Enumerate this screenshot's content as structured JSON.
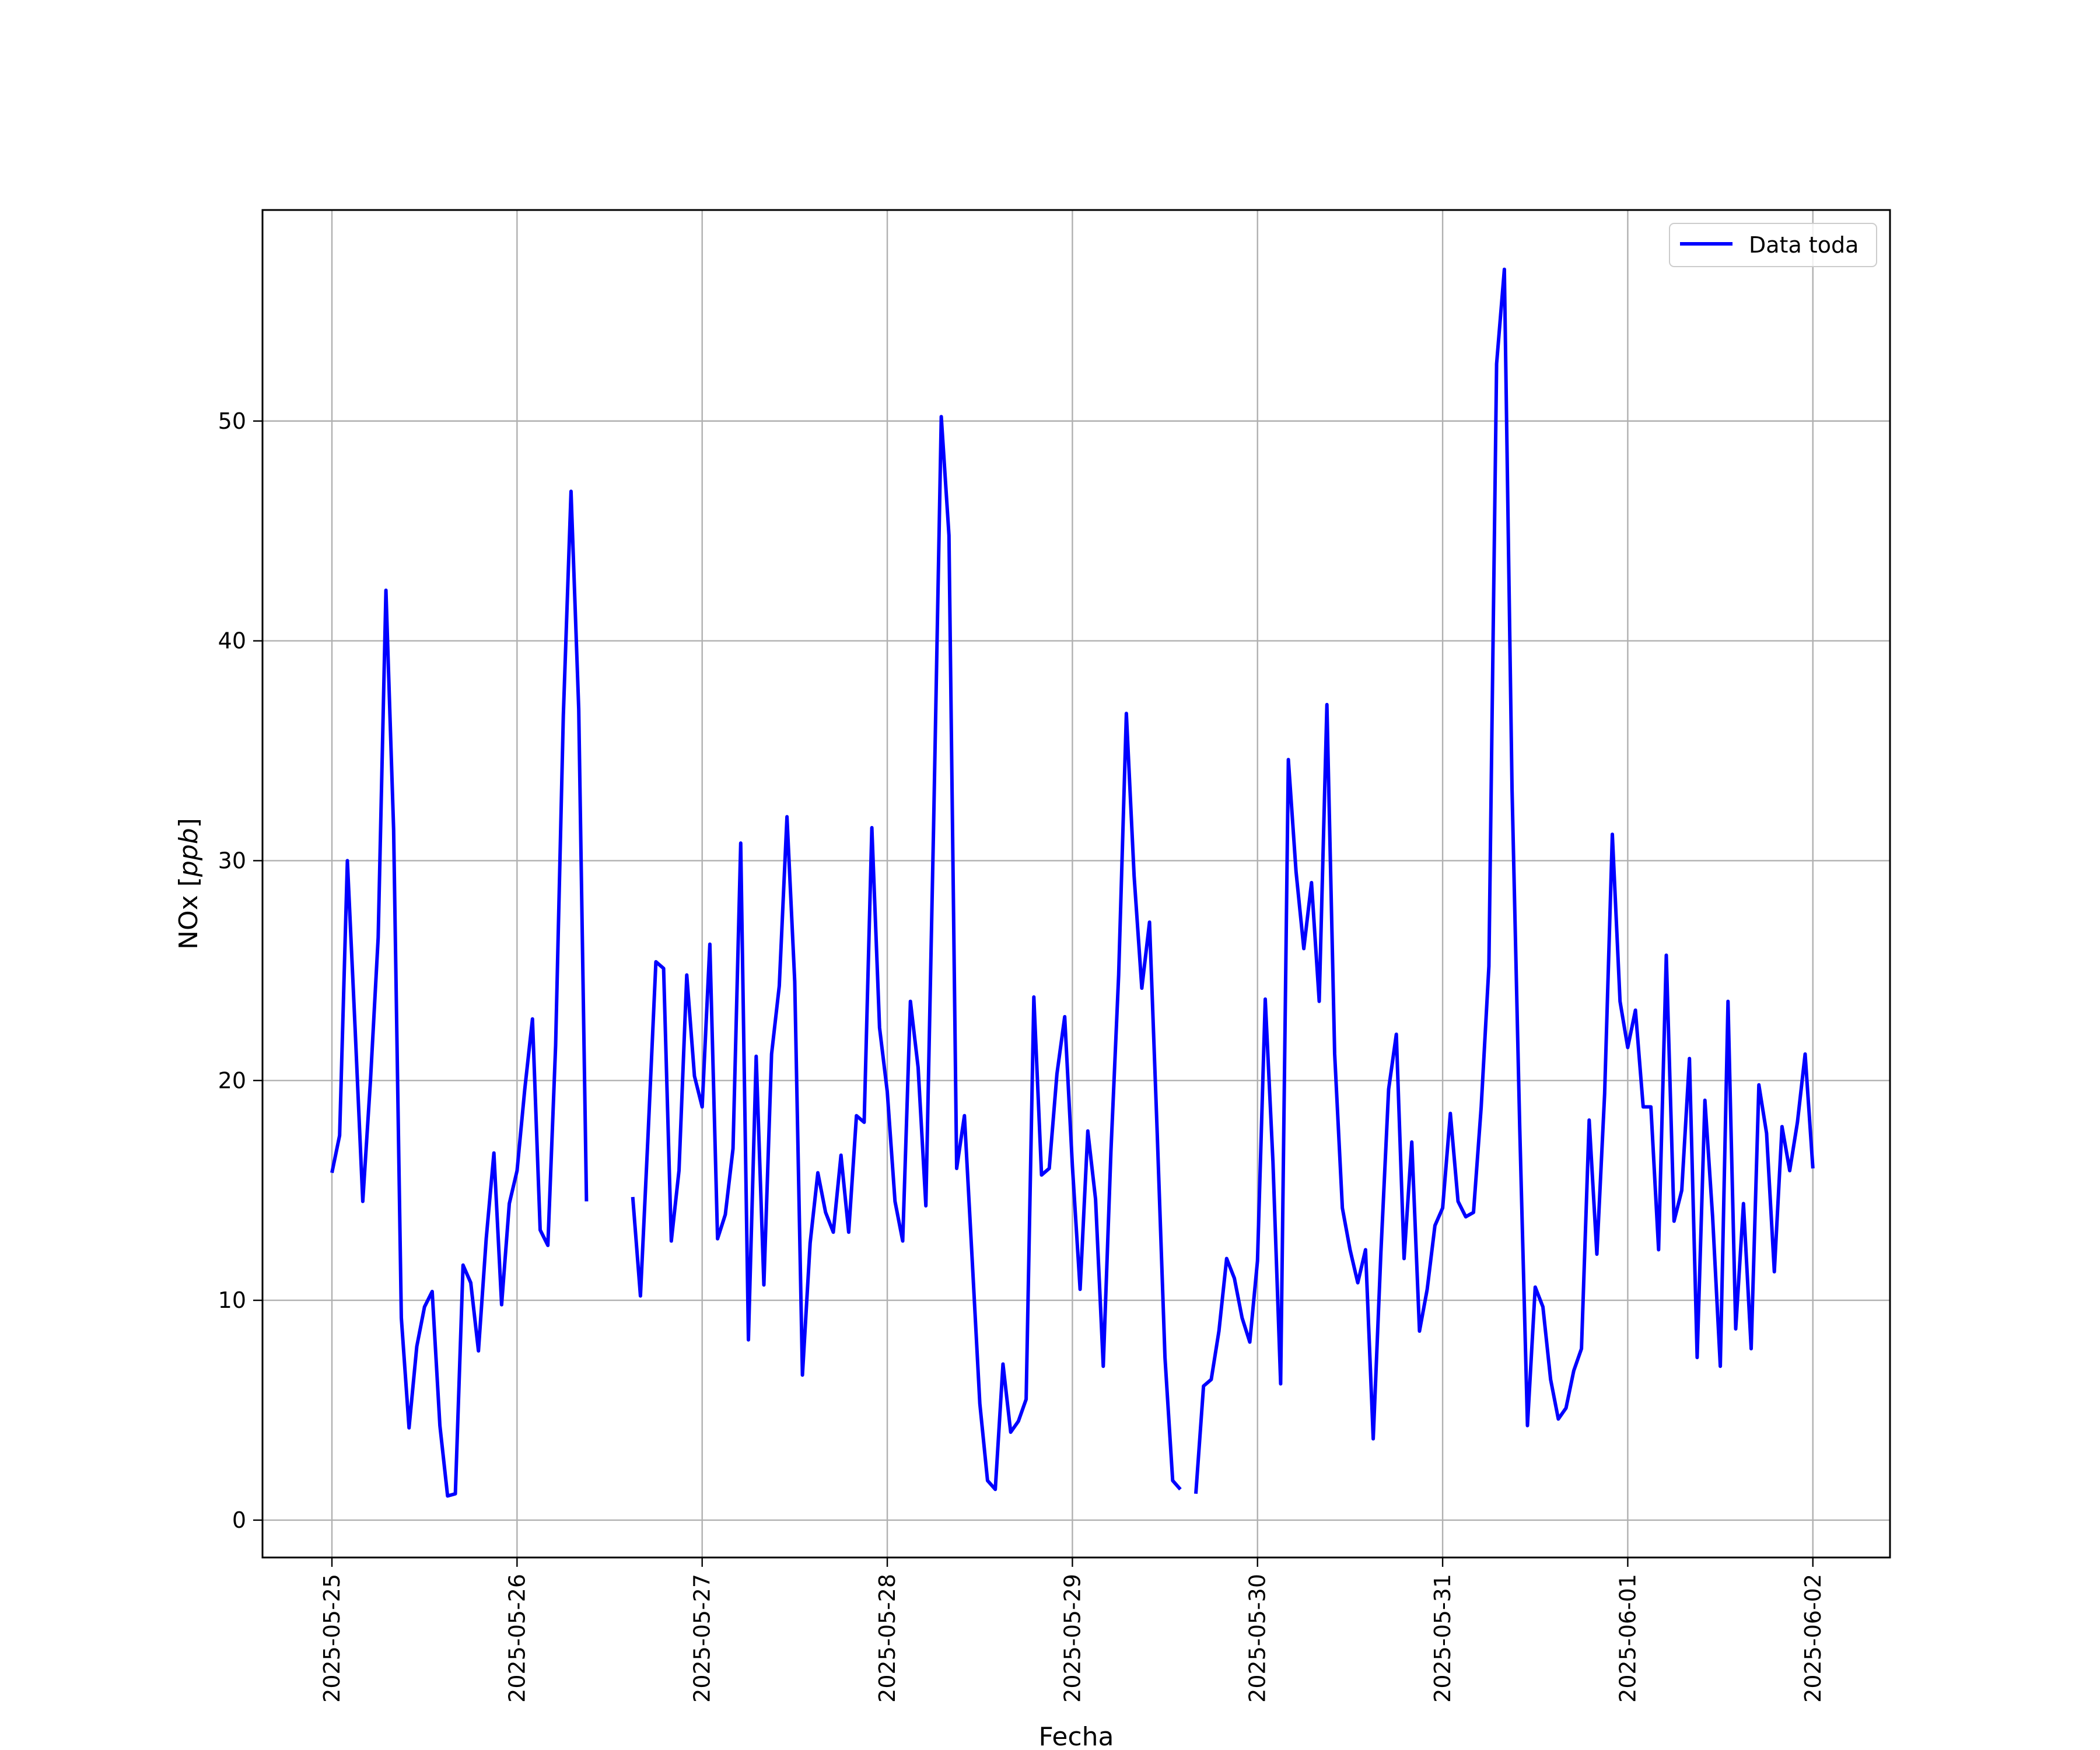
{
  "chart_data": {
    "type": "line",
    "title": "",
    "xlabel": "Fecha",
    "ylabel_main": "NOx [",
    "ylabel_unit": "ppb",
    "ylabel_close": "]",
    "xlim": [
      "2025-05-24T15:00",
      "2025-06-02T10:00"
    ],
    "ylim": [
      -1.7,
      59.6
    ],
    "grid": true,
    "legend_position": "top-right",
    "x_ticks": [
      "2025-05-25",
      "2025-05-26",
      "2025-05-27",
      "2025-05-28",
      "2025-05-29",
      "2025-05-30",
      "2025-05-31",
      "2025-06-01",
      "2025-06-02"
    ],
    "y_ticks": [
      0,
      10,
      20,
      30,
      40,
      50
    ],
    "series": [
      {
        "name": "Data toda",
        "color": "#0000ff",
        "points": [
          [
            "2025-05-25T00:00",
            15.8
          ],
          [
            "2025-05-25T01:00",
            17.5
          ],
          [
            "2025-05-25T02:00",
            30.0
          ],
          [
            "2025-05-25T03:00",
            22.4
          ],
          [
            "2025-05-25T04:00",
            14.5
          ],
          [
            "2025-05-25T05:00",
            20.0
          ],
          [
            "2025-05-25T06:00",
            26.5
          ],
          [
            "2025-05-25T07:00",
            42.3
          ],
          [
            "2025-05-25T08:00",
            31.4
          ],
          [
            "2025-05-25T09:00",
            9.2
          ],
          [
            "2025-05-25T10:00",
            4.2
          ],
          [
            "2025-05-25T11:00",
            7.9
          ],
          [
            "2025-05-25T12:00",
            9.7
          ],
          [
            "2025-05-25T13:00",
            10.4
          ],
          [
            "2025-05-25T14:00",
            4.3
          ],
          [
            "2025-05-25T15:00",
            1.1
          ],
          [
            "2025-05-25T16:00",
            1.2
          ],
          [
            "2025-05-25T17:00",
            11.6
          ],
          [
            "2025-05-25T18:00",
            10.8
          ],
          [
            "2025-05-25T19:00",
            7.7
          ],
          [
            "2025-05-25T20:00",
            12.8
          ],
          [
            "2025-05-25T21:00",
            16.7
          ],
          [
            "2025-05-25T22:00",
            9.8
          ],
          [
            "2025-05-25T23:00",
            14.4
          ],
          [
            "2025-05-26T00:00",
            15.9
          ],
          [
            "2025-05-26T01:00",
            19.6
          ],
          [
            "2025-05-26T02:00",
            22.8
          ],
          [
            "2025-05-26T03:00",
            13.2
          ],
          [
            "2025-05-26T04:00",
            12.5
          ],
          [
            "2025-05-26T05:00",
            21.6
          ],
          [
            "2025-05-26T06:00",
            36.6
          ],
          [
            "2025-05-26T07:00",
            46.8
          ],
          [
            "2025-05-26T08:00",
            36.9
          ],
          [
            "2025-05-26T09:00",
            14.5
          ],
          null,
          [
            "2025-05-26T15:00",
            14.7
          ],
          [
            "2025-05-26T16:00",
            10.2
          ],
          [
            "2025-05-26T17:00",
            17.6
          ],
          [
            "2025-05-26T18:00",
            25.4
          ],
          [
            "2025-05-26T19:00",
            25.1
          ],
          [
            "2025-05-26T20:00",
            12.7
          ],
          [
            "2025-05-26T21:00",
            15.9
          ],
          [
            "2025-05-26T22:00",
            24.8
          ],
          [
            "2025-05-26T23:00",
            20.2
          ],
          [
            "2025-05-27T00:00",
            18.8
          ],
          [
            "2025-05-27T01:00",
            26.2
          ],
          [
            "2025-05-27T02:00",
            12.8
          ],
          [
            "2025-05-27T03:00",
            13.9
          ],
          [
            "2025-05-27T04:00",
            16.9
          ],
          [
            "2025-05-27T05:00",
            30.8
          ],
          [
            "2025-05-27T06:00",
            8.2
          ],
          [
            "2025-05-27T07:00",
            21.1
          ],
          [
            "2025-05-27T08:00",
            10.7
          ],
          [
            "2025-05-27T09:00",
            21.2
          ],
          [
            "2025-05-27T10:00",
            24.3
          ],
          [
            "2025-05-27T11:00",
            32.0
          ],
          [
            "2025-05-27T12:00",
            24.5
          ],
          [
            "2025-05-27T13:00",
            6.6
          ],
          [
            "2025-05-27T14:00",
            12.6
          ],
          [
            "2025-05-27T15:00",
            15.8
          ],
          [
            "2025-05-27T16:00",
            14.0
          ],
          [
            "2025-05-27T17:00",
            13.1
          ],
          [
            "2025-05-27T18:00",
            16.6
          ],
          [
            "2025-05-27T19:00",
            13.1
          ],
          [
            "2025-05-27T20:00",
            18.4
          ],
          [
            "2025-05-27T21:00",
            18.1
          ],
          [
            "2025-05-27T22:00",
            31.5
          ],
          [
            "2025-05-27T23:00",
            22.4
          ],
          [
            "2025-05-28T00:00",
            19.5
          ],
          [
            "2025-05-28T01:00",
            14.5
          ],
          [
            "2025-05-28T02:00",
            12.7
          ],
          [
            "2025-05-28T03:00",
            23.6
          ],
          [
            "2025-05-28T04:00",
            20.6
          ],
          [
            "2025-05-28T05:00",
            14.3
          ],
          [
            "2025-05-28T06:00",
            31.5
          ],
          [
            "2025-05-28T07:00",
            50.2
          ],
          [
            "2025-05-28T08:00",
            44.8
          ],
          [
            "2025-05-28T09:00",
            16.0
          ],
          [
            "2025-05-28T10:00",
            18.4
          ],
          [
            "2025-05-28T11:00",
            11.9
          ],
          [
            "2025-05-28T12:00",
            5.3
          ],
          [
            "2025-05-28T13:00",
            1.8
          ],
          [
            "2025-05-28T14:00",
            1.4
          ],
          [
            "2025-05-28T15:00",
            7.1
          ],
          [
            "2025-05-28T16:00",
            4.0
          ],
          [
            "2025-05-28T17:00",
            4.5
          ],
          [
            "2025-05-28T18:00",
            5.5
          ],
          [
            "2025-05-28T19:00",
            23.8
          ],
          [
            "2025-05-28T20:00",
            15.7
          ],
          [
            "2025-05-28T21:00",
            16.0
          ],
          [
            "2025-05-28T22:00",
            20.3
          ],
          [
            "2025-05-28T23:00",
            22.9
          ],
          [
            "2025-05-29T00:00",
            16.1
          ],
          [
            "2025-05-29T01:00",
            10.5
          ],
          [
            "2025-05-29T02:00",
            17.7
          ],
          [
            "2025-05-29T03:00",
            14.6
          ],
          [
            "2025-05-29T04:00",
            7.0
          ],
          [
            "2025-05-29T05:00",
            16.8
          ],
          [
            "2025-05-29T06:00",
            24.8
          ],
          [
            "2025-05-29T07:00",
            36.7
          ],
          [
            "2025-05-29T08:00",
            29.3
          ],
          [
            "2025-05-29T09:00",
            24.2
          ],
          [
            "2025-05-29T10:00",
            27.2
          ],
          [
            "2025-05-29T11:00",
            17.6
          ],
          [
            "2025-05-29T12:00",
            7.4
          ],
          [
            "2025-05-29T13:00",
            1.8
          ],
          [
            "2025-05-29T14:00",
            1.4
          ],
          null,
          [
            "2025-05-29T16:00",
            1.2
          ],
          [
            "2025-05-29T17:00",
            6.1
          ],
          [
            "2025-05-29T18:00",
            6.4
          ],
          [
            "2025-05-29T19:00",
            8.6
          ],
          [
            "2025-05-29T20:00",
            11.9
          ],
          [
            "2025-05-29T21:00",
            11.0
          ],
          [
            "2025-05-29T22:00",
            9.2
          ],
          [
            "2025-05-29T23:00",
            8.1
          ],
          [
            "2025-05-30T00:00",
            11.8
          ],
          [
            "2025-05-30T01:00",
            23.7
          ],
          [
            "2025-05-30T02:00",
            16.3
          ],
          [
            "2025-05-30T03:00",
            6.2
          ],
          [
            "2025-05-30T04:00",
            34.6
          ],
          [
            "2025-05-30T05:00",
            29.5
          ],
          [
            "2025-05-30T06:00",
            26.0
          ],
          [
            "2025-05-30T07:00",
            29.0
          ],
          [
            "2025-05-30T08:00",
            23.6
          ],
          [
            "2025-05-30T09:00",
            37.1
          ],
          [
            "2025-05-30T10:00",
            21.2
          ],
          [
            "2025-05-30T11:00",
            14.2
          ],
          [
            "2025-05-30T12:00",
            12.3
          ],
          [
            "2025-05-30T13:00",
            10.8
          ],
          [
            "2025-05-30T14:00",
            12.3
          ],
          [
            "2025-05-30T15:00",
            3.7
          ],
          [
            "2025-05-30T16:00",
            12.2
          ],
          [
            "2025-05-30T17:00",
            19.6
          ],
          [
            "2025-05-30T18:00",
            22.1
          ],
          [
            "2025-05-30T19:00",
            11.9
          ],
          [
            "2025-05-30T20:00",
            17.2
          ],
          [
            "2025-05-30T21:00",
            8.6
          ],
          [
            "2025-05-30T22:00",
            10.5
          ],
          [
            "2025-05-30T23:00",
            13.4
          ],
          [
            "2025-05-31T00:00",
            14.2
          ],
          [
            "2025-05-31T01:00",
            18.5
          ],
          [
            "2025-05-31T02:00",
            14.5
          ],
          [
            "2025-05-31T03:00",
            13.8
          ],
          [
            "2025-05-31T04:00",
            14.0
          ],
          [
            "2025-05-31T05:00",
            18.8
          ],
          [
            "2025-05-31T06:00",
            25.2
          ],
          [
            "2025-05-31T07:00",
            52.6
          ],
          [
            "2025-05-31T08:00",
            56.9
          ],
          [
            "2025-05-31T09:00",
            33.2
          ],
          [
            "2025-05-31T10:00",
            17.8
          ],
          [
            "2025-05-31T11:00",
            4.3
          ],
          [
            "2025-05-31T12:00",
            10.6
          ],
          [
            "2025-05-31T13:00",
            9.7
          ],
          [
            "2025-05-31T14:00",
            6.4
          ],
          [
            "2025-05-31T15:00",
            4.6
          ],
          [
            "2025-05-31T16:00",
            5.1
          ],
          [
            "2025-05-31T17:00",
            6.8
          ],
          [
            "2025-05-31T18:00",
            7.8
          ],
          [
            "2025-05-31T19:00",
            18.2
          ],
          [
            "2025-05-31T20:00",
            12.1
          ],
          [
            "2025-05-31T21:00",
            19.4
          ],
          [
            "2025-05-31T22:00",
            31.2
          ],
          [
            "2025-05-31T23:00",
            23.6
          ],
          [
            "2025-06-01T00:00",
            21.5
          ],
          [
            "2025-06-01T01:00",
            23.2
          ],
          [
            "2025-06-01T02:00",
            18.8
          ],
          [
            "2025-06-01T03:00",
            18.8
          ],
          [
            "2025-06-01T04:00",
            12.3
          ],
          [
            "2025-06-01T05:00",
            25.7
          ],
          [
            "2025-06-01T06:00",
            13.6
          ],
          [
            "2025-06-01T07:00",
            15.0
          ],
          [
            "2025-06-01T08:00",
            21.0
          ],
          [
            "2025-06-01T09:00",
            7.4
          ],
          [
            "2025-06-01T10:00",
            19.1
          ],
          [
            "2025-06-01T11:00",
            13.8
          ],
          [
            "2025-06-01T12:00",
            7.0
          ],
          [
            "2025-06-01T13:00",
            23.6
          ],
          [
            "2025-06-01T14:00",
            8.7
          ],
          [
            "2025-06-01T15:00",
            14.4
          ],
          [
            "2025-06-01T16:00",
            7.8
          ],
          [
            "2025-06-01T17:00",
            19.8
          ],
          [
            "2025-06-01T18:00",
            17.6
          ],
          [
            "2025-06-01T19:00",
            11.3
          ],
          [
            "2025-06-01T20:00",
            17.9
          ],
          [
            "2025-06-01T21:00",
            15.9
          ],
          [
            "2025-06-01T22:00",
            18.1
          ],
          [
            "2025-06-01T23:00",
            21.2
          ],
          [
            "2025-06-02T00:00",
            16.0
          ]
        ]
      }
    ]
  }
}
